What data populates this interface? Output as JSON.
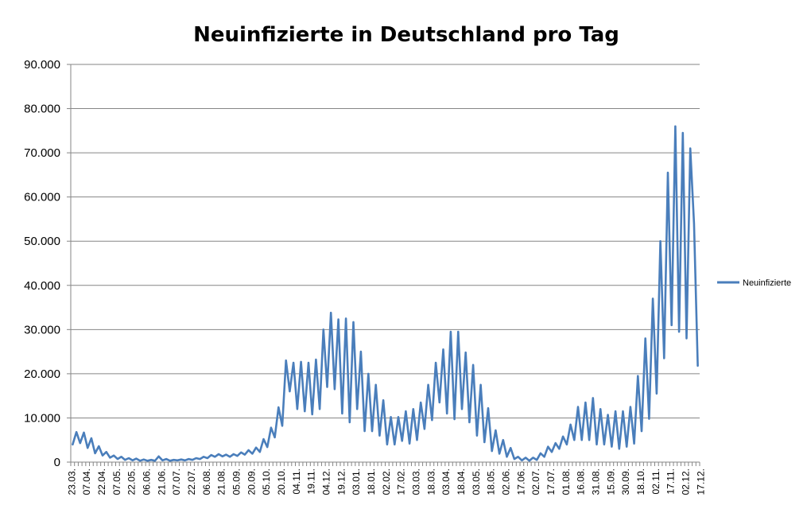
{
  "chart_data": {
    "type": "line",
    "title": "Neuinfizierte in Deutschland pro Tag",
    "xlabel": "",
    "ylabel": "",
    "ylim": [
      0,
      90000
    ],
    "yticks": [
      0,
      10000,
      20000,
      30000,
      40000,
      50000,
      60000,
      70000,
      80000,
      90000
    ],
    "ytick_labels": [
      "0",
      "10.000",
      "20.000",
      "30.000",
      "40.000",
      "50.000",
      "60.000",
      "70.000",
      "80.000",
      "90.000"
    ],
    "xtick_labels": [
      "23.03.",
      "07.04.",
      "22.04.",
      "07.05.",
      "22.05.",
      "06.06.",
      "21.06.",
      "07.07.",
      "22.07.",
      "06.08.",
      "21.08.",
      "05.09.",
      "20.09.",
      "05.10.",
      "20.10.",
      "04.11.",
      "19.11.",
      "04.12.",
      "19.12.",
      "03.01.",
      "18.01.",
      "02.02.",
      "17.02.",
      "03.03.",
      "18.03.",
      "03.04.",
      "18.04.",
      "03.05.",
      "18.05.",
      "02.06.",
      "17.06.",
      "02.07.",
      "17.07.",
      "01.08.",
      "16.08.",
      "31.08.",
      "15.09.",
      "30.09.",
      "18.10.",
      "02.11.",
      "17.11.",
      "02.12.",
      "17.12."
    ],
    "grid": true,
    "legend_position": "right",
    "series": [
      {
        "name": "Neuinfizierte",
        "color": "#4a7ebb",
        "points": [
          [
            0,
            4000
          ],
          [
            1,
            6800
          ],
          [
            2,
            4300
          ],
          [
            3,
            6700
          ],
          [
            4,
            3200
          ],
          [
            5,
            5400
          ],
          [
            6,
            2000
          ],
          [
            7,
            3600
          ],
          [
            8,
            1500
          ],
          [
            9,
            2300
          ],
          [
            10,
            1000
          ],
          [
            11,
            1500
          ],
          [
            12,
            700
          ],
          [
            13,
            1200
          ],
          [
            14,
            500
          ],
          [
            15,
            900
          ],
          [
            16,
            400
          ],
          [
            17,
            800
          ],
          [
            18,
            300
          ],
          [
            19,
            600
          ],
          [
            20,
            300
          ],
          [
            21,
            500
          ],
          [
            22,
            300
          ],
          [
            23,
            1300
          ],
          [
            24,
            400
          ],
          [
            25,
            700
          ],
          [
            26,
            300
          ],
          [
            27,
            500
          ],
          [
            28,
            400
          ],
          [
            29,
            600
          ],
          [
            30,
            400
          ],
          [
            31,
            700
          ],
          [
            32,
            500
          ],
          [
            33,
            900
          ],
          [
            34,
            700
          ],
          [
            35,
            1200
          ],
          [
            36,
            900
          ],
          [
            37,
            1600
          ],
          [
            38,
            1200
          ],
          [
            39,
            1800
          ],
          [
            40,
            1300
          ],
          [
            41,
            1700
          ],
          [
            42,
            1200
          ],
          [
            43,
            1800
          ],
          [
            44,
            1400
          ],
          [
            45,
            2200
          ],
          [
            46,
            1700
          ],
          [
            47,
            2700
          ],
          [
            48,
            1900
          ],
          [
            49,
            3300
          ],
          [
            50,
            2300
          ],
          [
            51,
            5200
          ],
          [
            52,
            3400
          ],
          [
            53,
            7800
          ],
          [
            54,
            5600
          ],
          [
            55,
            12400
          ],
          [
            56,
            8200
          ],
          [
            57,
            23000
          ],
          [
            58,
            16000
          ],
          [
            59,
            22500
          ],
          [
            60,
            12000
          ],
          [
            61,
            22700
          ],
          [
            62,
            11500
          ],
          [
            63,
            22500
          ],
          [
            64,
            10800
          ],
          [
            65,
            23200
          ],
          [
            66,
            12000
          ],
          [
            67,
            30000
          ],
          [
            68,
            17000
          ],
          [
            69,
            33800
          ],
          [
            70,
            16500
          ],
          [
            71,
            32300
          ],
          [
            72,
            11000
          ],
          [
            73,
            32500
          ],
          [
            74,
            9000
          ],
          [
            75,
            31700
          ],
          [
            76,
            12000
          ],
          [
            77,
            25000
          ],
          [
            78,
            7000
          ],
          [
            79,
            20000
          ],
          [
            80,
            7000
          ],
          [
            81,
            17500
          ],
          [
            82,
            6000
          ],
          [
            83,
            14000
          ],
          [
            84,
            4000
          ],
          [
            85,
            10200
          ],
          [
            86,
            4000
          ],
          [
            87,
            10200
          ],
          [
            88,
            4800
          ],
          [
            89,
            11500
          ],
          [
            90,
            4200
          ],
          [
            91,
            12000
          ],
          [
            92,
            5000
          ],
          [
            93,
            13500
          ],
          [
            94,
            7500
          ],
          [
            95,
            17500
          ],
          [
            96,
            9500
          ],
          [
            97,
            22500
          ],
          [
            98,
            13500
          ],
          [
            99,
            25500
          ],
          [
            100,
            11000
          ],
          [
            101,
            29500
          ],
          [
            102,
            9700
          ],
          [
            103,
            29500
          ],
          [
            104,
            12000
          ],
          [
            105,
            24800
          ],
          [
            106,
            9000
          ],
          [
            107,
            22000
          ],
          [
            108,
            6000
          ],
          [
            109,
            17500
          ],
          [
            110,
            4500
          ],
          [
            111,
            12200
          ],
          [
            112,
            2500
          ],
          [
            113,
            7200
          ],
          [
            114,
            1900
          ],
          [
            115,
            5000
          ],
          [
            116,
            1200
          ],
          [
            117,
            3200
          ],
          [
            118,
            700
          ],
          [
            119,
            1200
          ],
          [
            120,
            400
          ],
          [
            121,
            1000
          ],
          [
            122,
            300
          ],
          [
            123,
            1000
          ],
          [
            124,
            500
          ],
          [
            125,
            2000
          ],
          [
            126,
            1200
          ],
          [
            127,
            3500
          ],
          [
            128,
            2300
          ],
          [
            129,
            4300
          ],
          [
            130,
            3000
          ],
          [
            131,
            5800
          ],
          [
            132,
            4000
          ],
          [
            133,
            8500
          ],
          [
            134,
            5000
          ],
          [
            135,
            12500
          ],
          [
            136,
            5000
          ],
          [
            137,
            13500
          ],
          [
            138,
            5000
          ],
          [
            139,
            14500
          ],
          [
            140,
            4000
          ],
          [
            141,
            12000
          ],
          [
            142,
            4000
          ],
          [
            143,
            10700
          ],
          [
            144,
            3500
          ],
          [
            145,
            11500
          ],
          [
            146,
            3000
          ],
          [
            147,
            11500
          ],
          [
            148,
            3500
          ],
          [
            149,
            12500
          ],
          [
            150,
            4200
          ],
          [
            151,
            19500
          ],
          [
            152,
            7000
          ],
          [
            153,
            28000
          ],
          [
            154,
            9800
          ],
          [
            155,
            37000
          ],
          [
            156,
            15500
          ],
          [
            157,
            50000
          ],
          [
            158,
            23500
          ],
          [
            159,
            65500
          ],
          [
            160,
            31000
          ],
          [
            161,
            76000
          ],
          [
            162,
            29500
          ],
          [
            163,
            74500
          ],
          [
            164,
            28000
          ],
          [
            165,
            71000
          ],
          [
            166,
            54000
          ],
          [
            167,
            21800
          ]
        ]
      }
    ]
  }
}
